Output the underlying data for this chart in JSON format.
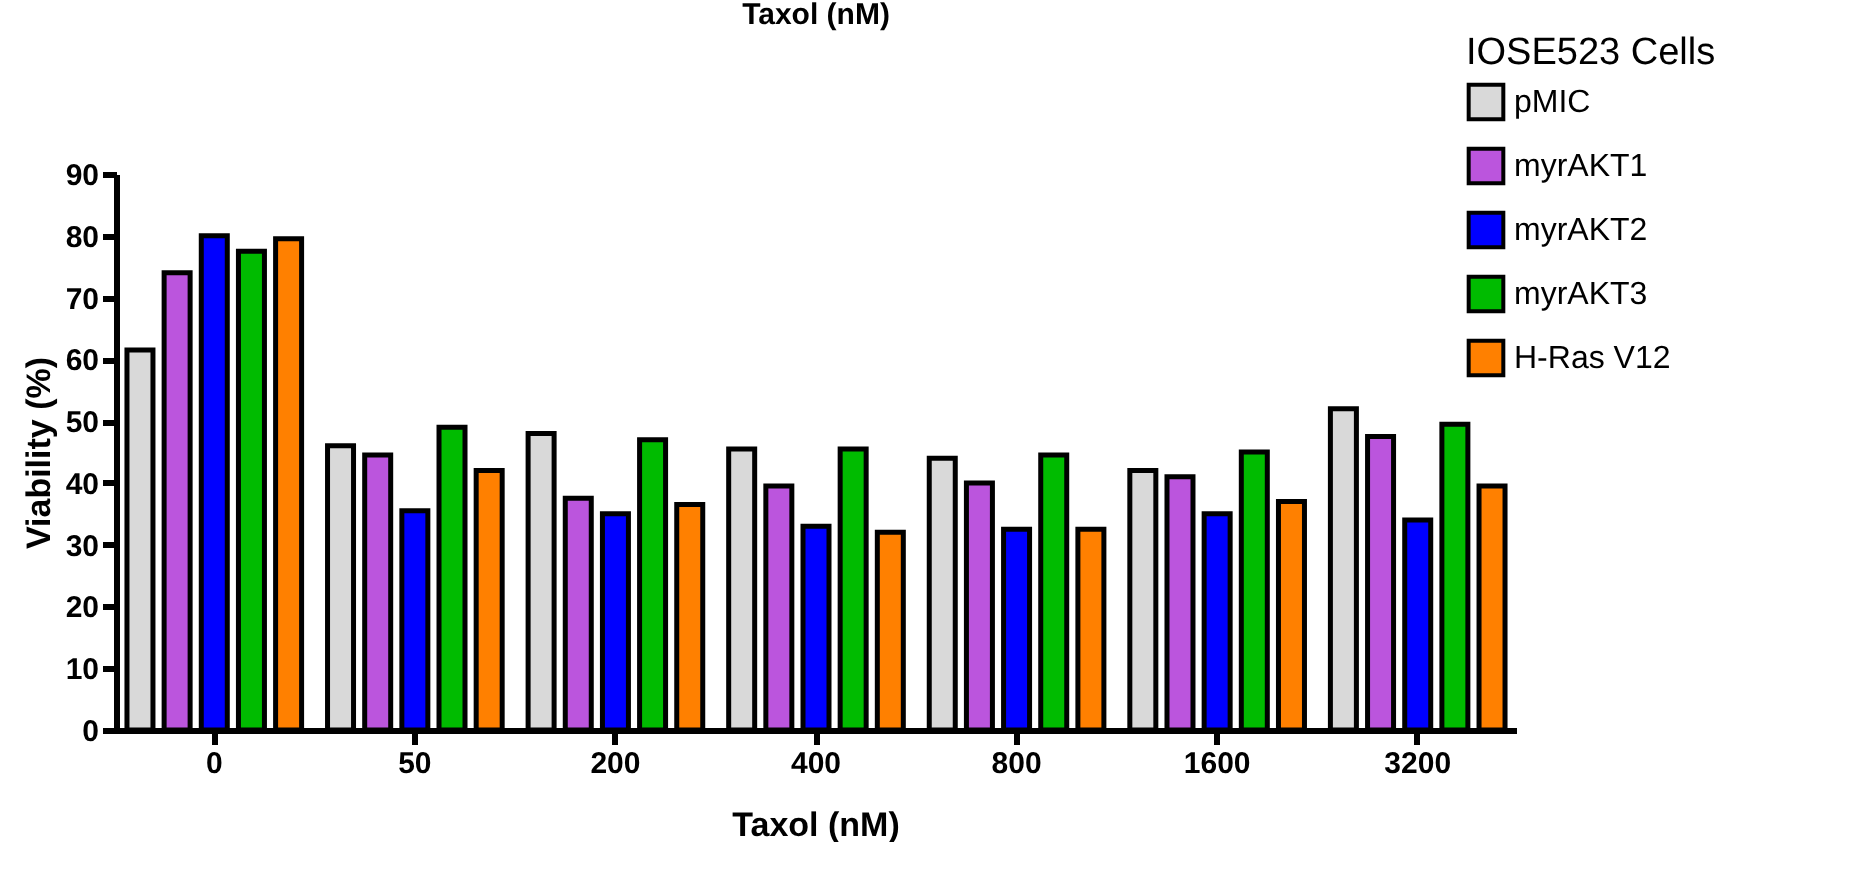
{
  "chart_data": {
    "type": "bar",
    "xlabel": "Taxol (nM)",
    "ylabel": "Viability (%)",
    "legend_title": "IOSE523 Cells",
    "annotations": [
      "Taxol (nM)"
    ],
    "categories": [
      "0",
      "50",
      "200",
      "400",
      "800",
      "1600",
      "3200"
    ],
    "series": [
      {
        "name": "pMIC",
        "color": "#d9d9d9",
        "values": [
          61.5,
          46,
          48,
          45.5,
          44,
          42,
          52
        ]
      },
      {
        "name": "myrAKT1",
        "color": "#bb55dd",
        "values": [
          74,
          44.5,
          37.5,
          39.5,
          40,
          41,
          47.5
        ]
      },
      {
        "name": "myrAKT2",
        "color": "#0000ff",
        "values": [
          80,
          35.5,
          35,
          33,
          32.5,
          35,
          34
        ]
      },
      {
        "name": "myrAKT3",
        "color": "#00bb00",
        "values": [
          77.5,
          49,
          47,
          45.5,
          44.5,
          45,
          49.5
        ]
      },
      {
        "name": "H-Ras V12",
        "color": "#ff8000",
        "values": [
          79.5,
          42,
          36.5,
          32,
          32.5,
          37,
          39.5
        ]
      }
    ],
    "ylim": [
      0,
      90
    ],
    "yticks": [
      0,
      10,
      20,
      30,
      40,
      50,
      60,
      70,
      80,
      90
    ],
    "grid": false,
    "legend": "top right"
  }
}
